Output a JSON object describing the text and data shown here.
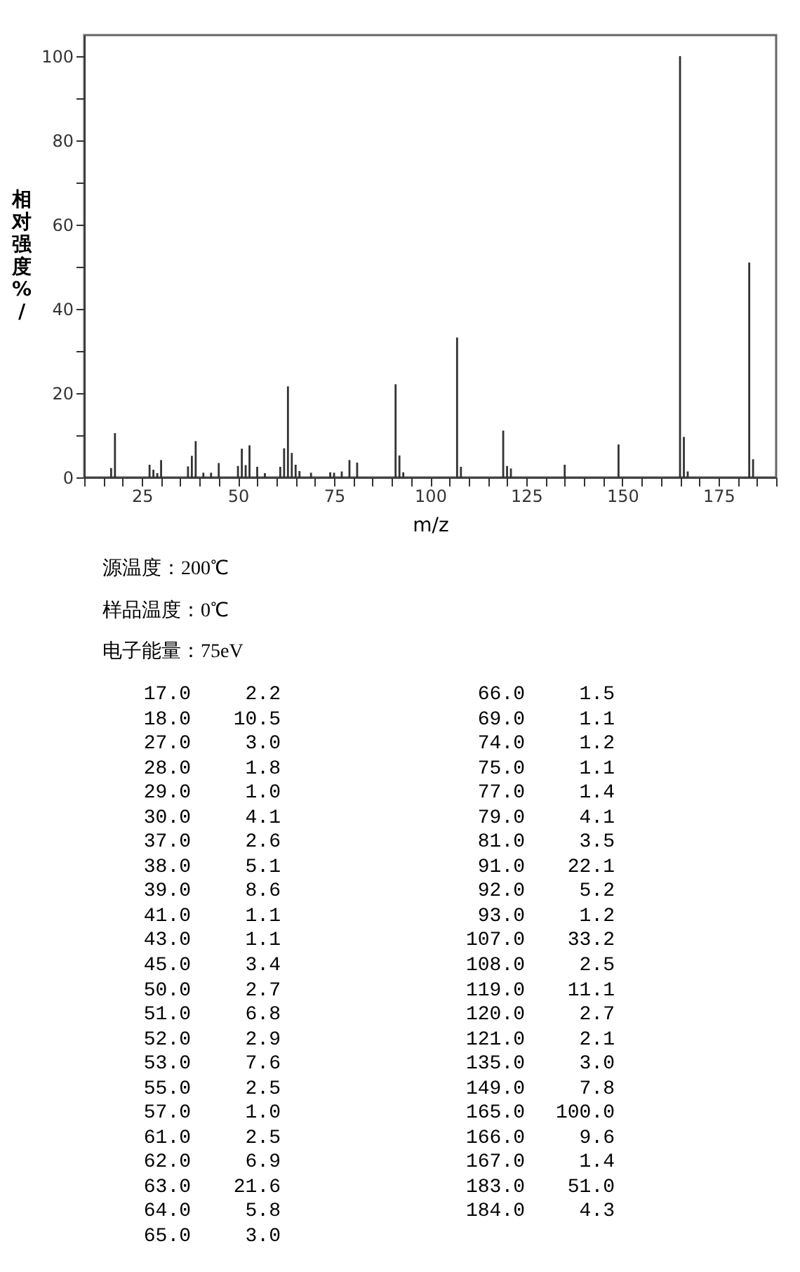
{
  "chart_data": [
    {
      "type": "bar",
      "xlabel": "m/z",
      "ylabel": "相对强度%/",
      "color": "#333333",
      "x": [
        17,
        18,
        27,
        28,
        29,
        30,
        37,
        38,
        39,
        41,
        43,
        45,
        50,
        51,
        52,
        53,
        55,
        57,
        61,
        62,
        63,
        64,
        65,
        66,
        69,
        74,
        75,
        77,
        79,
        81,
        91,
        92,
        93,
        107,
        108,
        119,
        120,
        121,
        135,
        149,
        165,
        166,
        167,
        183,
        184
      ],
      "values": [
        2.2,
        10.5,
        3.0,
        1.8,
        1.0,
        4.1,
        2.6,
        5.1,
        8.6,
        1.1,
        1.1,
        3.4,
        2.7,
        6.8,
        2.9,
        7.6,
        2.5,
        1.0,
        2.5,
        6.9,
        21.6,
        5.8,
        3.0,
        1.5,
        1.1,
        1.2,
        1.1,
        1.4,
        4.1,
        3.5,
        22.1,
        5.2,
        1.2,
        33.2,
        2.5,
        11.1,
        2.7,
        2.1,
        3.0,
        7.8,
        100.0,
        9.6,
        1.4,
        51.0,
        4.3
      ],
      "xlim": [
        10,
        190
      ],
      "xticks": [
        {
          "value": 10,
          "label": null
        },
        {
          "value": 15,
          "label": null
        },
        {
          "value": 20,
          "label": null
        },
        25,
        {
          "value": 30,
          "label": null
        },
        {
          "value": 35,
          "label": null
        },
        {
          "value": 40,
          "label": null
        },
        {
          "value": 45,
          "label": null
        },
        50,
        {
          "value": 55,
          "label": null
        },
        {
          "value": 60,
          "label": null
        },
        {
          "value": 65,
          "label": null
        },
        {
          "value": 70,
          "label": null
        },
        75,
        {
          "value": 80,
          "label": null
        },
        {
          "value": 85,
          "label": null
        },
        {
          "value": 90,
          "label": null
        },
        {
          "value": 95,
          "label": null
        },
        100,
        {
          "value": 105,
          "label": null
        },
        {
          "value": 110,
          "label": null
        },
        {
          "value": 115,
          "label": null
        },
        {
          "value": 120,
          "label": null
        },
        125,
        {
          "value": 130,
          "label": null
        },
        {
          "value": 135,
          "label": null
        },
        {
          "value": 140,
          "label": null
        },
        {
          "value": 145,
          "label": null
        },
        150,
        {
          "value": 155,
          "label": null
        },
        {
          "value": 160,
          "label": null
        },
        {
          "value": 165,
          "label": null
        },
        {
          "value": 170,
          "label": null
        },
        175,
        {
          "value": 180,
          "label": null
        },
        {
          "value": 185,
          "label": null
        },
        {
          "value": 190,
          "label": null
        }
      ],
      "ylim": [
        0,
        105
      ],
      "yticks": [
        0,
        {
          "value": 10,
          "label": null
        },
        20,
        {
          "value": 30,
          "label": null
        },
        40,
        {
          "value": 50,
          "label": null
        },
        60,
        {
          "value": 70,
          "label": null
        },
        80,
        {
          "value": 90,
          "label": null
        },
        100
      ],
      "annotations": [
        "源温度：200℃",
        "样品温度：0℃",
        "电子能量：75eV"
      ]
    },
    {
      "type": "other",
      "annotations": [
        "17.0",
        "2.2",
        "18.0",
        "10.5",
        "27.0",
        "3.0",
        "28.0",
        "1.8",
        "29.0",
        "1.0",
        "30.0",
        "4.1",
        "37.0",
        "2.6",
        "38.0",
        "5.1",
        "39.0",
        "8.6",
        "41.0",
        "1.1",
        "43.0",
        "1.1",
        "45.0",
        "3.4",
        "50.0",
        "2.7",
        "51.0",
        "6.8",
        "52.0",
        "2.9",
        "53.0",
        "7.6",
        "55.0",
        "2.5",
        "57.0",
        "1.0",
        "61.0",
        "2.5",
        "62.0",
        "6.9",
        "63.0",
        "21.6",
        "64.0",
        "5.8",
        "65.0",
        "3.0",
        "66.0",
        "1.5",
        "69.0",
        "1.1",
        "74.0",
        "1.2",
        "75.0",
        "1.1",
        "77.0",
        "1.4",
        "79.0",
        "4.1",
        "81.0",
        "3.5",
        "91.0",
        "22.1",
        "92.0",
        "5.2",
        "93.0",
        "1.2",
        "107.0",
        "33.2",
        "108.0",
        "2.5",
        "119.0",
        "11.1",
        "120.0",
        "2.7",
        "121.0",
        "2.1",
        "135.0",
        "3.0",
        "149.0",
        "7.8",
        "165.0",
        "100.0",
        "166.0",
        "9.6",
        "167.0",
        "1.4",
        "183.0",
        "51.0",
        "184.0",
        "4.3"
      ]
    }
  ]
}
